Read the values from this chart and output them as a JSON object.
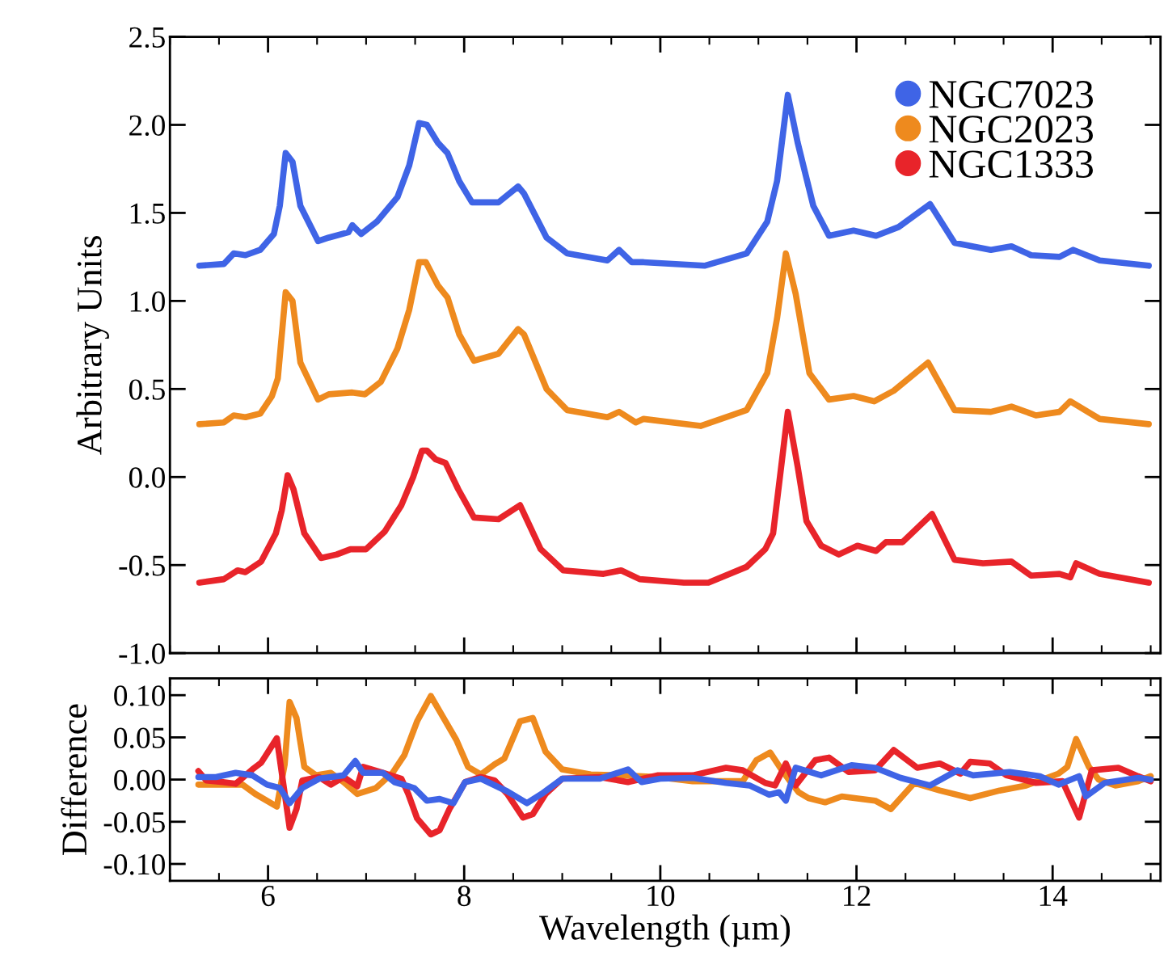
{
  "chart_data": [
    {
      "type": "line",
      "ylabel": "Arbitrary Units",
      "xlim": [
        5,
        15.1
      ],
      "ylim": [
        -1.0,
        2.5
      ],
      "xticks": [
        6,
        8,
        10,
        12,
        14
      ],
      "yticks": [
        {
          "value": -1.0,
          "label": "-1.0"
        },
        {
          "value": -0.5,
          "label": "-0.5"
        },
        {
          "value": 0.0,
          "label": "0.0"
        },
        {
          "value": 0.5,
          "label": "0.5"
        },
        {
          "value": 1.0,
          "label": "1.0"
        },
        {
          "value": 1.5,
          "label": "1.5"
        },
        {
          "value": 2.0,
          "label": "2.0"
        },
        {
          "value": 2.5,
          "label": "2.5"
        }
      ],
      "tick_labels": "y",
      "legend": "top right",
      "grid": false,
      "series": [
        {
          "name": "NGC7023",
          "color": "#3f64e6",
          "x": [
            5.3,
            5.55,
            5.65,
            5.77,
            5.92,
            6.06,
            6.12,
            6.18,
            6.25,
            6.33,
            6.51,
            6.62,
            6.82,
            6.86,
            6.95,
            7.11,
            7.32,
            7.44,
            7.54,
            7.62,
            7.73,
            7.83,
            7.95,
            8.08,
            8.35,
            8.55,
            8.61,
            8.84,
            9.05,
            9.46,
            9.58,
            9.71,
            9.83,
            10.45,
            10.88,
            11.09,
            11.19,
            11.3,
            11.4,
            11.56,
            11.72,
            11.97,
            12.2,
            12.43,
            12.75,
            13.0,
            13.37,
            13.58,
            13.78,
            14.07,
            14.21,
            14.48,
            14.98
          ],
          "values": [
            1.2,
            1.21,
            1.27,
            1.26,
            1.29,
            1.38,
            1.54,
            1.84,
            1.79,
            1.54,
            1.34,
            1.36,
            1.39,
            1.43,
            1.38,
            1.45,
            1.59,
            1.77,
            2.01,
            2.0,
            1.9,
            1.84,
            1.68,
            1.56,
            1.56,
            1.65,
            1.61,
            1.36,
            1.27,
            1.23,
            1.29,
            1.22,
            1.22,
            1.2,
            1.27,
            1.45,
            1.68,
            2.17,
            1.9,
            1.54,
            1.37,
            1.4,
            1.37,
            1.42,
            1.55,
            1.33,
            1.29,
            1.31,
            1.26,
            1.25,
            1.29,
            1.23,
            1.2
          ]
        },
        {
          "name": "NGC2023",
          "color": "#ee8a1e",
          "x": [
            5.3,
            5.55,
            5.65,
            5.77,
            5.92,
            6.04,
            6.1,
            6.18,
            6.25,
            6.33,
            6.51,
            6.62,
            6.86,
            6.99,
            7.15,
            7.32,
            7.44,
            7.54,
            7.61,
            7.73,
            7.83,
            7.95,
            8.1,
            8.35,
            8.55,
            8.61,
            8.84,
            9.05,
            9.46,
            9.58,
            9.75,
            9.83,
            10.41,
            10.88,
            11.09,
            11.19,
            11.28,
            11.38,
            11.52,
            11.72,
            11.97,
            12.18,
            12.38,
            12.73,
            13.0,
            13.37,
            13.58,
            13.83,
            14.07,
            14.18,
            14.48,
            14.98
          ],
          "values": [
            0.3,
            0.31,
            0.35,
            0.34,
            0.36,
            0.46,
            0.56,
            1.05,
            1.0,
            0.65,
            0.44,
            0.47,
            0.48,
            0.47,
            0.54,
            0.73,
            0.95,
            1.22,
            1.22,
            1.09,
            1.02,
            0.81,
            0.66,
            0.7,
            0.84,
            0.81,
            0.5,
            0.38,
            0.34,
            0.37,
            0.31,
            0.33,
            0.29,
            0.38,
            0.59,
            0.9,
            1.27,
            1.04,
            0.59,
            0.44,
            0.46,
            0.43,
            0.49,
            0.65,
            0.38,
            0.37,
            0.4,
            0.35,
            0.37,
            0.43,
            0.33,
            0.3
          ]
        },
        {
          "name": "NGC1333",
          "color": "#e8242a",
          "x": [
            5.3,
            5.55,
            5.69,
            5.77,
            5.93,
            6.08,
            6.14,
            6.2,
            6.26,
            6.37,
            6.54,
            6.7,
            6.84,
            7.0,
            7.19,
            7.36,
            7.48,
            7.57,
            7.62,
            7.71,
            7.81,
            7.94,
            8.1,
            8.35,
            8.57,
            8.78,
            9.01,
            9.42,
            9.6,
            9.79,
            10.24,
            10.49,
            10.88,
            11.07,
            11.15,
            11.3,
            11.4,
            11.49,
            11.64,
            11.82,
            12.01,
            12.2,
            12.3,
            12.47,
            12.77,
            13.0,
            13.29,
            13.58,
            13.78,
            14.07,
            14.18,
            14.24,
            14.48,
            14.98
          ],
          "values": [
            -0.6,
            -0.58,
            -0.53,
            -0.54,
            -0.48,
            -0.32,
            -0.19,
            0.01,
            -0.07,
            -0.32,
            -0.46,
            -0.44,
            -0.41,
            -0.41,
            -0.31,
            -0.16,
            0.0,
            0.15,
            0.15,
            0.1,
            0.08,
            -0.07,
            -0.23,
            -0.24,
            -0.16,
            -0.41,
            -0.53,
            -0.55,
            -0.53,
            -0.58,
            -0.6,
            -0.6,
            -0.51,
            -0.41,
            -0.32,
            0.37,
            0.06,
            -0.25,
            -0.39,
            -0.44,
            -0.39,
            -0.42,
            -0.37,
            -0.37,
            -0.21,
            -0.47,
            -0.49,
            -0.48,
            -0.56,
            -0.55,
            -0.57,
            -0.49,
            -0.55,
            -0.6
          ]
        }
      ]
    },
    {
      "type": "line",
      "ylabel": "Difference",
      "xlabel": "Wavelength (µm)",
      "xlim": [
        5,
        15.1
      ],
      "ylim": [
        -0.12,
        0.12
      ],
      "xticks": [
        6,
        8,
        10,
        12,
        14
      ],
      "yticks": [
        {
          "value": -0.1,
          "label": "-0.10"
        },
        {
          "value": -0.05,
          "label": "-0.05"
        },
        {
          "value": 0.0,
          "label": "0.00"
        },
        {
          "value": 0.05,
          "label": "0.05"
        },
        {
          "value": 0.1,
          "label": "0.10"
        }
      ],
      "grid": false,
      "series": [
        {
          "color": "#ee8a1e",
          "x": [
            5.29,
            5.74,
            5.87,
            6.09,
            6.17,
            6.22,
            6.29,
            6.37,
            6.49,
            6.64,
            6.77,
            6.91,
            7.1,
            7.27,
            7.39,
            7.52,
            7.66,
            7.79,
            7.92,
            8.04,
            8.17,
            8.31,
            8.41,
            8.57,
            8.7,
            8.83,
            9.0,
            9.29,
            9.61,
            9.97,
            10.33,
            10.84,
            10.98,
            11.12,
            11.24,
            11.31,
            11.41,
            11.51,
            11.68,
            11.85,
            12.19,
            12.35,
            12.59,
            12.85,
            13.16,
            13.46,
            13.73,
            14.06,
            14.15,
            14.24,
            14.37,
            14.47,
            14.64,
            14.87,
            15.0
          ],
          "values": [
            -0.006,
            -0.006,
            -0.017,
            -0.032,
            0.018,
            0.092,
            0.073,
            0.015,
            0.005,
            0.008,
            -0.003,
            -0.017,
            -0.01,
            0.008,
            0.029,
            0.069,
            0.099,
            0.073,
            0.047,
            0.015,
            0.006,
            0.018,
            0.025,
            0.069,
            0.073,
            0.033,
            0.012,
            0.006,
            0.005,
            0.003,
            -0.002,
            -0.002,
            0.023,
            0.032,
            0.011,
            0.0,
            -0.015,
            -0.022,
            -0.027,
            -0.02,
            -0.025,
            -0.035,
            -0.004,
            -0.013,
            -0.022,
            -0.013,
            -0.007,
            0.007,
            0.015,
            0.048,
            0.015,
            0.0,
            -0.007,
            -0.002,
            0.004
          ]
        },
        {
          "color": "#e8242a",
          "x": [
            5.29,
            5.37,
            5.54,
            5.67,
            5.84,
            5.93,
            6.09,
            6.14,
            6.22,
            6.29,
            6.35,
            6.52,
            6.64,
            6.77,
            6.91,
            6.97,
            7.17,
            7.36,
            7.43,
            7.52,
            7.66,
            7.75,
            7.85,
            8.01,
            8.17,
            8.31,
            8.44,
            8.6,
            8.7,
            8.83,
            9.0,
            9.38,
            9.67,
            9.97,
            10.33,
            10.67,
            10.84,
            11.07,
            11.17,
            11.28,
            11.38,
            11.58,
            11.72,
            11.92,
            12.19,
            12.38,
            12.62,
            12.85,
            13.06,
            13.16,
            13.36,
            13.53,
            13.83,
            14.1,
            14.27,
            14.4,
            14.67,
            14.87,
            15.0
          ],
          "values": [
            0.01,
            -0.001,
            -0.003,
            -0.005,
            0.012,
            0.02,
            0.049,
            0.008,
            -0.057,
            -0.035,
            -0.001,
            0.003,
            -0.006,
            0.003,
            -0.008,
            0.015,
            0.008,
            0.001,
            -0.017,
            -0.046,
            -0.065,
            -0.06,
            -0.035,
            -0.003,
            0.003,
            -0.001,
            -0.017,
            -0.045,
            -0.041,
            -0.017,
            0.001,
            0.003,
            -0.003,
            0.005,
            0.005,
            0.014,
            0.011,
            -0.004,
            -0.007,
            0.019,
            -0.007,
            0.023,
            0.026,
            0.009,
            0.011,
            0.035,
            0.014,
            0.019,
            0.007,
            0.021,
            0.019,
            0.005,
            -0.004,
            -0.002,
            -0.045,
            0.011,
            0.014,
            0.004,
            -0.002
          ]
        },
        {
          "color": "#3f64e6",
          "x": [
            5.29,
            5.47,
            5.67,
            5.84,
            5.99,
            6.12,
            6.22,
            6.35,
            6.52,
            6.77,
            6.89,
            6.97,
            7.17,
            7.29,
            7.49,
            7.62,
            7.75,
            7.89,
            8.01,
            8.17,
            8.44,
            8.64,
            8.79,
            9.0,
            9.38,
            9.67,
            9.81,
            10.0,
            10.33,
            10.67,
            10.91,
            11.11,
            11.21,
            11.28,
            11.38,
            11.64,
            11.95,
            12.19,
            12.45,
            12.75,
            13.03,
            13.19,
            13.56,
            13.87,
            14.06,
            14.27,
            14.34,
            14.53,
            14.87,
            15.0
          ],
          "values": [
            0.003,
            0.003,
            0.008,
            0.005,
            -0.006,
            -0.01,
            -0.028,
            -0.01,
            0.001,
            0.005,
            0.022,
            0.008,
            0.008,
            -0.003,
            -0.01,
            -0.025,
            -0.023,
            -0.028,
            -0.003,
            0.001,
            -0.014,
            -0.028,
            -0.017,
            0.001,
            0.001,
            0.012,
            -0.003,
            0.001,
            0.002,
            -0.004,
            -0.007,
            -0.018,
            -0.015,
            -0.025,
            0.014,
            0.005,
            0.017,
            0.014,
            0.002,
            -0.007,
            0.011,
            0.005,
            0.009,
            0.004,
            -0.006,
            0.004,
            -0.02,
            -0.004,
            0.002,
            0.0
          ]
        }
      ]
    }
  ]
}
